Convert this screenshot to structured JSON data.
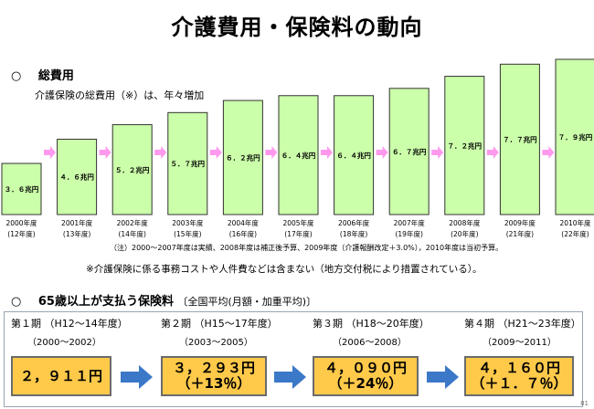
{
  "title": "介護費用・保険料の動向",
  "section1": {
    "bullet": "○",
    "heading": "総費用",
    "subtitle": "介護保険の総費用（※）は、年々増加"
  },
  "chart_data": {
    "type": "bar",
    "categories": [
      {
        "year": "2000年度",
        "era": "(12年度)"
      },
      {
        "year": "2001年度",
        "era": "(13年度)"
      },
      {
        "year": "2002年度",
        "era": "(14年度)"
      },
      {
        "year": "2003年度",
        "era": "(15年度)"
      },
      {
        "year": "2004年度",
        "era": "(16年度)"
      },
      {
        "year": "2005年度",
        "era": "(17年度)"
      },
      {
        "year": "2006年度",
        "era": "(18年度)"
      },
      {
        "year": "2007年度",
        "era": "(19年度)"
      },
      {
        "year": "2008年度",
        "era": "(20年度)"
      },
      {
        "year": "2009年度",
        "era": "(21年度)"
      },
      {
        "year": "2010年度",
        "era": "(22年度)"
      }
    ],
    "values": [
      3.6,
      4.6,
      5.2,
      5.7,
      6.2,
      6.4,
      6.4,
      6.7,
      7.2,
      7.7,
      7.9
    ],
    "labels": [
      "３．６兆円",
      "４．６兆円",
      "５．２兆円",
      "５．７兆円",
      "６．２兆円",
      "６．４兆円",
      "６．４兆円",
      "６．７兆円",
      "７．２兆円",
      "７．７兆円",
      "７．９兆円"
    ],
    "bar_color": "#ccffaa",
    "arrow_color": "#ff99ee",
    "ylim": [
      0,
      8
    ]
  },
  "note1": "（注）2000～2007年度は実績、2008年度は補正後予算、2009年度（介護報酬改定＋3.0%），2010年度は当初予算。",
  "note2": "※介護保険に係る事務コストや人件費などは含まない（地方交付税により措置されている）。",
  "section2": {
    "bullet": "○",
    "heading": "65歳以上が支払う保険料",
    "heading_suffix": "〔全国平均(月額・加重平均)〕"
  },
  "periods": [
    {
      "label": "第１期 （H12～14年度）",
      "years": "（2000～2002）",
      "amount": "２，９１１円",
      "change": ""
    },
    {
      "label": "第２期 （H15～17年度）",
      "years": "（2003～2005）",
      "amount": "３，２９３円",
      "change": "（＋13％）"
    },
    {
      "label": "第３期 （H18～20年度）",
      "years": "（2006～2008）",
      "amount": "４，０９０円",
      "change": "（＋24％）"
    },
    {
      "label": "第４期 （H21～23年度）",
      "years": "（2009～2011）",
      "amount": "４，１６０円",
      "change": "（＋１．７％）"
    }
  ],
  "colors": {
    "premium_box": "#ffc94a",
    "premium_arrow": "#3b78c8"
  },
  "page_number": "81"
}
